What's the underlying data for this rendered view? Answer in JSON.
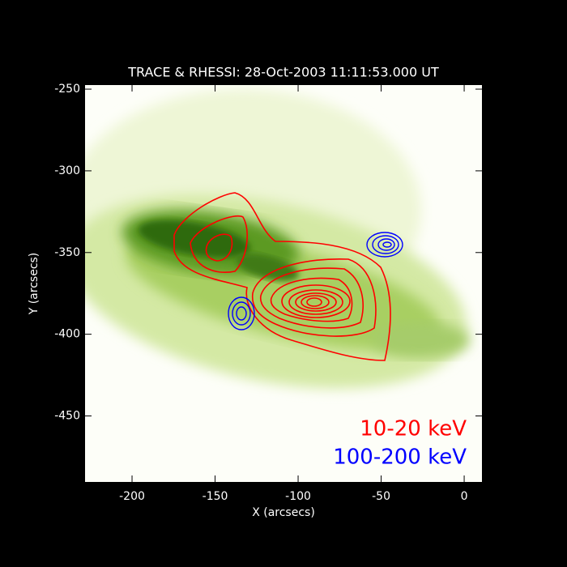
{
  "chart_data": {
    "type": "image",
    "title": "TRACE & RHESSI:  28-Oct-2003 11:11:53.000 UT",
    "x_label": "X (arcsecs)",
    "y_label": "Y (arcsecs)",
    "xlim": [
      -228.3,
      10.7
    ],
    "ylim": [
      -490.4,
      -247.5
    ],
    "xticks": [
      -200,
      -150,
      -100,
      -50,
      0
    ],
    "yticks": [
      -250,
      -300,
      -350,
      -400,
      -450
    ],
    "series": [
      {
        "name": "10-20 keV",
        "color": "#ff0000"
      },
      {
        "name": "100-200 keV",
        "color": "#0000ff"
      }
    ]
  }
}
